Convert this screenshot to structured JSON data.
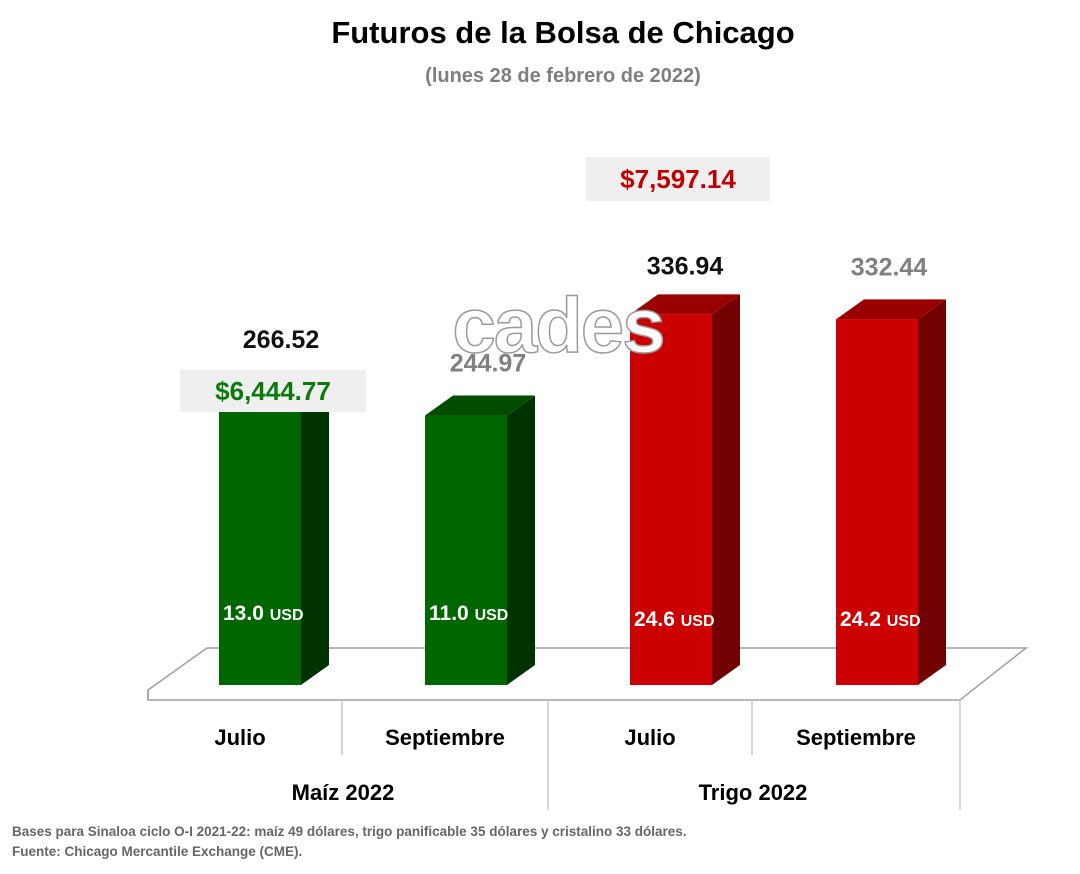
{
  "watermark": "cades",
  "chart_data": {
    "type": "bar",
    "title": "Futuros de la Bolsa de Chicago",
    "subtitle": "(lunes 28 de febrero de 2022)",
    "ylim": [
      0,
      360
    ],
    "grid": false,
    "groups": [
      {
        "label": "Maíz 2022",
        "total_label": "$6,444.77",
        "color": "#006600"
      },
      {
        "label": "Trigo 2022",
        "total_label": "$7,597.14",
        "color": "#cc0000"
      }
    ],
    "categories": [
      "Julio",
      "Septiembre",
      "Julio",
      "Septiembre"
    ],
    "values": [
      266.52,
      244.97,
      336.94,
      332.44
    ],
    "value_labels": [
      "266.52",
      "244.97",
      "336.94",
      "332.44"
    ],
    "inner_labels": [
      {
        "value": "13.0",
        "unit": "USD"
      },
      {
        "value": "11.0",
        "unit": "USD"
      },
      {
        "value": "24.6",
        "unit": "USD"
      },
      {
        "value": "24.2",
        "unit": "USD"
      }
    ],
    "group_index": [
      0,
      0,
      1,
      1
    ],
    "colors": {
      "maiz_front": "#006600",
      "maiz_side": "#003300",
      "maiz_top": "#004d00",
      "trigo_front": "#cc0000",
      "trigo_side": "#730000",
      "trigo_top": "#990000",
      "total_maiz": "#0b7a0b",
      "total_trigo": "#c00000",
      "value_dark": "#111111",
      "value_grey": "#808080"
    },
    "footnotes": [
      "Bases para Sinaloa ciclo O-I 2021-22: maíz 49 dólares, trigo panificable 35 dólares y cristalino 33 dólares.",
      "Fuente: Chicago Mercantile Exchange (CME)."
    ]
  }
}
